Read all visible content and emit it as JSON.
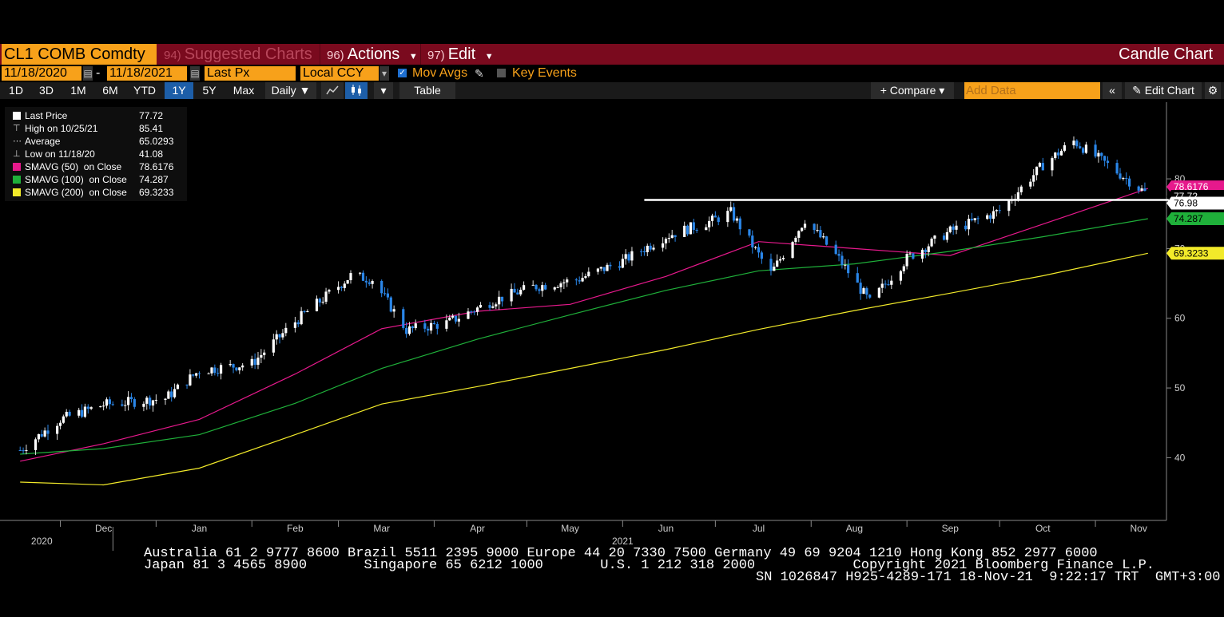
{
  "toolbar": {
    "ticker": "CL1 COMB Comdty",
    "suggested_num": "94)",
    "suggested_label": "Suggested Charts",
    "actions_num": "96)",
    "actions_label": "Actions",
    "edit_num": "97)",
    "edit_label": "Edit",
    "chart_type": "Candle Chart"
  },
  "controls": {
    "start_date": "11/18/2020",
    "dash": "-",
    "end_date": "11/18/2021",
    "price_field": "Last Px",
    "currency": "Local CCY",
    "mov_avgs": "Mov Avgs",
    "key_events": "Key Events"
  },
  "ranges": [
    "1D",
    "3D",
    "1M",
    "6M",
    "YTD",
    "1Y",
    "5Y",
    "Max"
  ],
  "frequency": "Daily ▼",
  "table_label": "Table",
  "compare_label": "+ Compare ▾",
  "add_data_placeholder": "Add Data",
  "edit_chart_label": "Edit Chart",
  "legend": [
    {
      "label": "Last Price",
      "value": "77.72",
      "color": "#ffffff",
      "kind": "swatch"
    },
    {
      "label": "High on 10/25/21",
      "value": "85.41",
      "color": "#cccccc",
      "kind": "high"
    },
    {
      "label": "Average",
      "value": "65.0293",
      "color": "#cccccc",
      "kind": "avg"
    },
    {
      "label": "Low on 11/18/20",
      "value": "41.08",
      "color": "#cccccc",
      "kind": "low"
    },
    {
      "label": "SMAVG (50)  on Close",
      "value": "78.6176",
      "color": "#e6198c",
      "kind": "swatch"
    },
    {
      "label": "SMAVG (100)  on Close",
      "value": "74.287",
      "color": "#1fb03a",
      "kind": "swatch"
    },
    {
      "label": "SMAVG (200)  on Close",
      "value": "69.3233",
      "color": "#f2ea2a",
      "kind": "swatch"
    }
  ],
  "chart_data": {
    "type": "line",
    "ylim": [
      31,
      91
    ],
    "y_ticks": [
      40,
      50,
      60,
      70,
      80
    ],
    "x_labels": [
      "Dec",
      "Jan",
      "Feb",
      "Mar",
      "Apr",
      "May",
      "Jun",
      "Jul",
      "Aug",
      "Sep",
      "Oct",
      "Nov"
    ],
    "year_labels": [
      "2020",
      "2021"
    ],
    "horizontal_line": 76.98,
    "markers": [
      {
        "value": 78.6176,
        "text": "78.6176",
        "color": "#e6198c"
      },
      {
        "value": 77.72,
        "text": "77.72",
        "color": "#ffffff"
      },
      {
        "value": 76.98,
        "text": "76.98",
        "color": "#ffffff"
      },
      {
        "value": 74.287,
        "text": "74.287",
        "color": "#1fb03a"
      },
      {
        "value": 69.3233,
        "text": "69.3233",
        "color": "#f2ea2a"
      }
    ],
    "series": [
      {
        "name": "Last Price",
        "color": "#ffffff",
        "x": [
          "2020-11-18",
          "2020-12-01",
          "2020-12-15",
          "2021-01-04",
          "2021-01-15",
          "2021-02-01",
          "2021-02-15",
          "2021-03-05",
          "2021-03-12",
          "2021-03-23",
          "2021-04-05",
          "2021-04-20",
          "2021-05-03",
          "2021-05-17",
          "2021-06-01",
          "2021-06-15",
          "2021-06-30",
          "2021-07-06",
          "2021-07-19",
          "2021-07-30",
          "2021-08-10",
          "2021-08-20",
          "2021-09-01",
          "2021-09-15",
          "2021-10-01",
          "2021-10-15",
          "2021-10-25",
          "2021-11-05",
          "2021-11-18"
        ],
        "y": [
          41.08,
          45.5,
          47.6,
          48.5,
          52.5,
          53.5,
          59.5,
          66.1,
          65.6,
          58.3,
          59.3,
          62.5,
          64.5,
          65.5,
          68.2,
          71.8,
          74.0,
          75.2,
          66.4,
          74.2,
          68.5,
          62.3,
          68.6,
          72.5,
          75.4,
          82.0,
          85.41,
          82.0,
          77.72
        ]
      },
      {
        "name": "SMAVG (50)",
        "color": "#e6198c",
        "x": [
          "2020-11-18",
          "2020-12-15",
          "2021-01-15",
          "2021-02-15",
          "2021-03-15",
          "2021-04-15",
          "2021-05-15",
          "2021-06-15",
          "2021-07-15",
          "2021-08-15",
          "2021-09-15",
          "2021-10-15",
          "2021-11-18"
        ],
        "y": [
          39.5,
          42.0,
          45.5,
          52.0,
          58.5,
          61.0,
          62.0,
          66.0,
          71.0,
          70.0,
          69.0,
          73.5,
          78.6176
        ]
      },
      {
        "name": "SMAVG (100)",
        "color": "#1fb03a",
        "x": [
          "2020-11-18",
          "2020-12-15",
          "2021-01-15",
          "2021-02-15",
          "2021-03-15",
          "2021-04-15",
          "2021-05-15",
          "2021-06-15",
          "2021-07-15",
          "2021-08-15",
          "2021-09-15",
          "2021-10-15",
          "2021-11-18"
        ],
        "y": [
          40.5,
          41.3,
          43.3,
          47.8,
          52.8,
          57.0,
          60.5,
          64.0,
          66.8,
          67.8,
          69.6,
          71.7,
          74.287
        ]
      },
      {
        "name": "SMAVG (200)",
        "color": "#f2ea2a",
        "x": [
          "2020-11-18",
          "2020-12-15",
          "2021-01-15",
          "2021-02-15",
          "2021-03-15",
          "2021-04-15",
          "2021-05-15",
          "2021-06-15",
          "2021-07-15",
          "2021-08-15",
          "2021-09-15",
          "2021-10-15",
          "2021-11-18"
        ],
        "y": [
          36.5,
          36.1,
          38.5,
          43.3,
          47.7,
          50.2,
          52.8,
          55.5,
          58.4,
          61.1,
          63.6,
          66.1,
          69.3233
        ]
      }
    ]
  },
  "footer": {
    "line1": "Australia 61 2 9777 8600 Brazil 5511 2395 9000 Europe 44 20 7330 7500 Germany 49 69 9204 1210 Hong Kong 852 2977 6000",
    "line2": "Japan 81 3 4565 8900       Singapore 65 6212 1000       U.S. 1 212 318 2000            Copyright 2021 Bloomberg Finance L.P.",
    "line3": "SN 1026847 H925-4289-171 18-Nov-21  9:22:17 TRT  GMT+3:00"
  }
}
